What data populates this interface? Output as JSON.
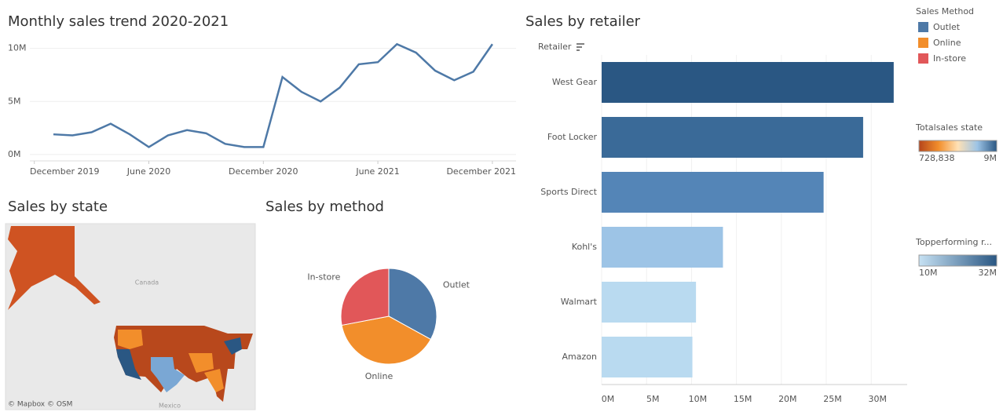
{
  "chart_data": [
    {
      "type": "line",
      "title": "Monthly sales trend 2020-2021",
      "color": "#4e79a7",
      "x": [
        "2020-01",
        "2020-02",
        "2020-03",
        "2020-04",
        "2020-05",
        "2020-06",
        "2020-07",
        "2020-08",
        "2020-09",
        "2020-10",
        "2020-11",
        "2020-12",
        "2021-01",
        "2021-02",
        "2021-03",
        "2021-04",
        "2021-05",
        "2021-06",
        "2021-07",
        "2021-08",
        "2021-09",
        "2021-10",
        "2021-11",
        "2021-12"
      ],
      "values": [
        1900000,
        1800000,
        2100000,
        2900000,
        1900000,
        700000,
        1800000,
        2300000,
        2000000,
        1000000,
        700000,
        700000,
        7300000,
        5900000,
        5000000,
        6300000,
        8500000,
        8700000,
        10400000,
        9600000,
        7900000,
        7000000,
        7800000,
        10400000
      ],
      "xticks": [
        {
          "value": "2019-12",
          "label": "December 2019"
        },
        {
          "value": "2020-06",
          "label": "June 2020"
        },
        {
          "value": "2020-12",
          "label": "December 2020"
        },
        {
          "value": "2021-06",
          "label": "June 2021"
        },
        {
          "value": "2021-12",
          "label": "December 2021"
        }
      ],
      "ylim": [
        -600000,
        11600000
      ],
      "yticks": [
        {
          "value": 0,
          "label": "0M"
        },
        {
          "value": 5000000,
          "label": "5M"
        },
        {
          "value": 10000000,
          "label": "10M"
        }
      ],
      "grid": true
    },
    {
      "type": "hbar",
      "title": "Sales by retailer",
      "axis_label": "Retailer",
      "categories": [
        "West Gear",
        "Foot Locker",
        "Sports Direct",
        "Kohl's",
        "Walmart",
        "Amazon"
      ],
      "values": [
        32500000,
        29100000,
        24700000,
        13500000,
        10500000,
        10100000
      ],
      "colors": [
        "#2a5783",
        "#3a6a98",
        "#5485b7",
        "#9dc4e6",
        "#b9daf0",
        "#b9daf0"
      ],
      "xlim": [
        0,
        34000000
      ],
      "xticks": [
        {
          "value": 0,
          "label": "0M"
        },
        {
          "value": 5000000,
          "label": "5M"
        },
        {
          "value": 10000000,
          "label": "10M"
        },
        {
          "value": 15000000,
          "label": "15M"
        },
        {
          "value": 20000000,
          "label": "20M"
        },
        {
          "value": 25000000,
          "label": "25M"
        },
        {
          "value": 30000000,
          "label": "30M"
        }
      ],
      "grid": true
    },
    {
      "type": "pie",
      "title": "Sales by method",
      "categories": [
        "Outlet",
        "Online",
        "In-store"
      ],
      "values": [
        33,
        39,
        28
      ],
      "colors": [
        "#4e79a7",
        "#f28e2b",
        "#e15759"
      ]
    },
    {
      "type": "map",
      "title": "Sales by state",
      "labels": [
        "Canada",
        "Mexico"
      ],
      "attribution": "© Mapbox © OSM"
    }
  ],
  "legends": {
    "method": {
      "title": "Sales Method"
    },
    "state": {
      "title": "Totalsales state",
      "min_label": "728,838",
      "max_label": "9M",
      "colors": [
        "#b5451b",
        "#f28e2b",
        "#ffe1b5",
        "#9dc4e6",
        "#2a5783"
      ]
    },
    "retailer": {
      "title": "Topperforming r...",
      "min_label": "10M",
      "max_label": "32M",
      "colors": [
        "#c6e1f3",
        "#2a5783"
      ]
    }
  }
}
